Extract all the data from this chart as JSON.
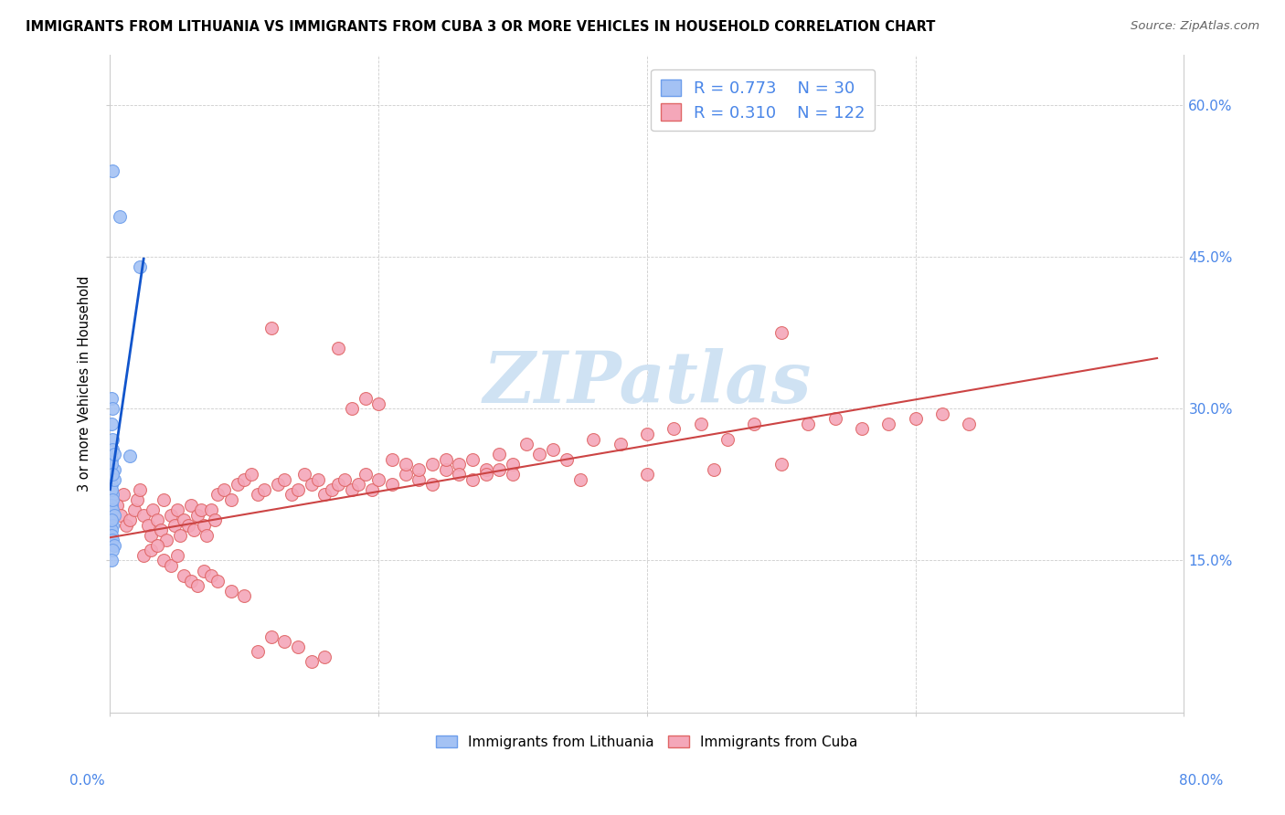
{
  "title": "IMMIGRANTS FROM LITHUANIA VS IMMIGRANTS FROM CUBA 3 OR MORE VEHICLES IN HOUSEHOLD CORRELATION CHART",
  "source": "Source: ZipAtlas.com",
  "ylabel": "3 or more Vehicles in Household",
  "legend1_R": "0.773",
  "legend1_N": "30",
  "legend2_R": "0.310",
  "legend2_N": "122",
  "color_lithuania": "#a4c2f4",
  "color_cuba": "#f4a7b9",
  "color_edge_lithuania": "#6d9eeb",
  "color_edge_cuba": "#e06666",
  "color_line_lithuania": "#1155cc",
  "color_line_cuba": "#cc4444",
  "color_tick_labels": "#4a86e8",
  "watermark_color": "#cfe2f3",
  "xlim": [
    0.0,
    0.8
  ],
  "ylim": [
    0.0,
    0.65
  ],
  "yticks": [
    0.15,
    0.3,
    0.45,
    0.6
  ],
  "ytick_labels": [
    "15.0%",
    "30.0%",
    "45.0%",
    "60.0%"
  ],
  "lith_x": [
    0.002,
    0.007,
    0.015,
    0.022,
    0.001,
    0.002,
    0.001,
    0.002,
    0.001,
    0.003,
    0.001,
    0.002,
    0.001,
    0.002,
    0.003,
    0.002,
    0.001,
    0.001,
    0.002,
    0.003,
    0.001,
    0.002,
    0.003,
    0.002,
    0.001,
    0.002,
    0.003,
    0.001,
    0.002,
    0.001
  ],
  "lith_y": [
    0.535,
    0.49,
    0.253,
    0.44,
    0.31,
    0.3,
    0.285,
    0.27,
    0.25,
    0.24,
    0.225,
    0.215,
    0.205,
    0.2,
    0.195,
    0.185,
    0.18,
    0.175,
    0.17,
    0.165,
    0.22,
    0.21,
    0.23,
    0.26,
    0.245,
    0.235,
    0.255,
    0.19,
    0.16,
    0.15
  ],
  "cuba_x": [
    0.005,
    0.008,
    0.01,
    0.012,
    0.015,
    0.018,
    0.02,
    0.022,
    0.025,
    0.028,
    0.03,
    0.032,
    0.035,
    0.038,
    0.04,
    0.042,
    0.045,
    0.048,
    0.05,
    0.052,
    0.055,
    0.058,
    0.06,
    0.062,
    0.065,
    0.068,
    0.07,
    0.072,
    0.075,
    0.078,
    0.08,
    0.085,
    0.09,
    0.095,
    0.1,
    0.105,
    0.11,
    0.115,
    0.12,
    0.125,
    0.13,
    0.135,
    0.14,
    0.145,
    0.15,
    0.155,
    0.16,
    0.165,
    0.17,
    0.175,
    0.18,
    0.185,
    0.19,
    0.195,
    0.2,
    0.21,
    0.22,
    0.23,
    0.24,
    0.25,
    0.26,
    0.27,
    0.28,
    0.29,
    0.3,
    0.31,
    0.32,
    0.33,
    0.34,
    0.36,
    0.38,
    0.4,
    0.42,
    0.44,
    0.46,
    0.48,
    0.5,
    0.52,
    0.54,
    0.56,
    0.58,
    0.6,
    0.62,
    0.64,
    0.025,
    0.03,
    0.035,
    0.04,
    0.045,
    0.05,
    0.055,
    0.06,
    0.065,
    0.07,
    0.075,
    0.08,
    0.09,
    0.1,
    0.11,
    0.12,
    0.13,
    0.14,
    0.15,
    0.16,
    0.17,
    0.18,
    0.19,
    0.2,
    0.21,
    0.22,
    0.23,
    0.24,
    0.25,
    0.26,
    0.27,
    0.28,
    0.29,
    0.3,
    0.35,
    0.4,
    0.45,
    0.5
  ],
  "cuba_y": [
    0.205,
    0.195,
    0.215,
    0.185,
    0.19,
    0.2,
    0.21,
    0.22,
    0.195,
    0.185,
    0.175,
    0.2,
    0.19,
    0.18,
    0.21,
    0.17,
    0.195,
    0.185,
    0.2,
    0.175,
    0.19,
    0.185,
    0.205,
    0.18,
    0.195,
    0.2,
    0.185,
    0.175,
    0.2,
    0.19,
    0.215,
    0.22,
    0.21,
    0.225,
    0.23,
    0.235,
    0.215,
    0.22,
    0.38,
    0.225,
    0.23,
    0.215,
    0.22,
    0.235,
    0.225,
    0.23,
    0.215,
    0.22,
    0.225,
    0.23,
    0.22,
    0.225,
    0.235,
    0.22,
    0.23,
    0.225,
    0.235,
    0.23,
    0.225,
    0.24,
    0.245,
    0.25,
    0.24,
    0.255,
    0.245,
    0.265,
    0.255,
    0.26,
    0.25,
    0.27,
    0.265,
    0.275,
    0.28,
    0.285,
    0.27,
    0.285,
    0.375,
    0.285,
    0.29,
    0.28,
    0.285,
    0.29,
    0.295,
    0.285,
    0.155,
    0.16,
    0.165,
    0.15,
    0.145,
    0.155,
    0.135,
    0.13,
    0.125,
    0.14,
    0.135,
    0.13,
    0.12,
    0.115,
    0.06,
    0.075,
    0.07,
    0.065,
    0.05,
    0.055,
    0.36,
    0.3,
    0.31,
    0.305,
    0.25,
    0.245,
    0.24,
    0.245,
    0.25,
    0.235,
    0.23,
    0.235,
    0.24,
    0.235,
    0.23,
    0.235,
    0.24,
    0.245
  ]
}
